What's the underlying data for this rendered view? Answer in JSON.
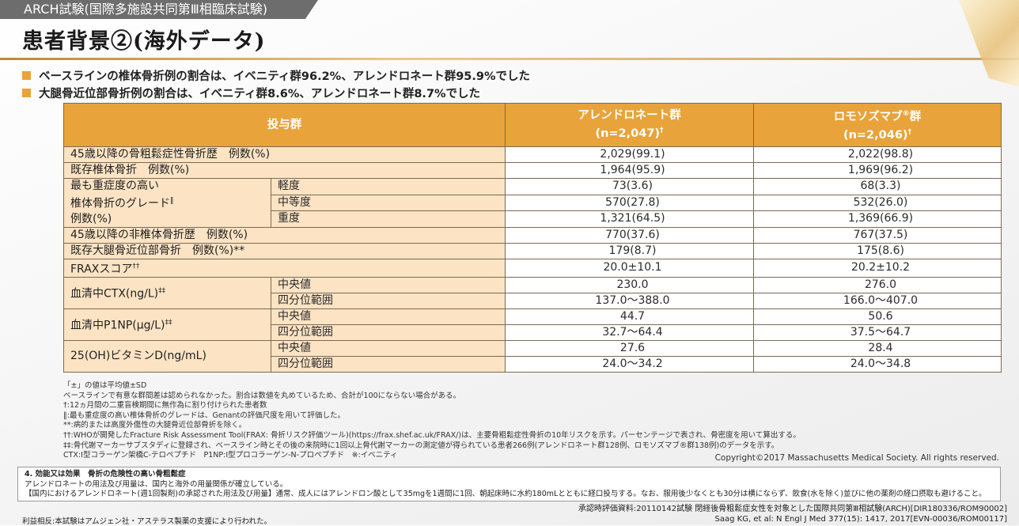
{
  "header": {
    "tab_label": "ARCH試験(国際多施設共同第Ⅲ相臨床試験)",
    "title": "患者背景②(海外データ)"
  },
  "bullets": [
    "ベースラインの椎体骨折例の割合は、イベニティ群96.2%、アレンドロネート群95.9%でした",
    "大腿骨近位部骨折例の割合は、イベニティ群8.6%、アレンドロネート群8.7%でした"
  ],
  "table": {
    "head_group": "投与群",
    "col1_name": "アレンドロネート群",
    "col1_n": "(n=2,047)",
    "col1_mark": "†",
    "col2_name": "ロモソズマブ",
    "col2_reg": "®",
    "col2_suffix": "群",
    "col2_n": "(n=2,046)",
    "col2_mark": "†",
    "rows": {
      "hist45": {
        "label": "45歳以降の骨粗鬆症性骨折歴　例数(%)",
        "c1": "2,029(99.1)",
        "c2": "2,022(98.8)"
      },
      "vert": {
        "label": "既存椎体骨折　例数(%)",
        "c1": "1,964(95.9)",
        "c2": "1,969(96.2)"
      },
      "grade": {
        "label1": "最も重症度の高い",
        "label2": "椎体骨折のグレード",
        "label2_mark": "‖",
        "label3": "例数(%)",
        "mild": {
          "label": "軽度",
          "c1": "73(3.6)",
          "c2": "68(3.3)"
        },
        "moderate": {
          "label": "中等度",
          "c1": "570(27.8)",
          "c2": "532(26.0)"
        },
        "severe": {
          "label": "重度",
          "c1": "1,321(64.5)",
          "c2": "1,369(66.9)"
        }
      },
      "nonvert": {
        "label": "45歳以降の非椎体骨折歴　例数(%)",
        "c1": "770(37.6)",
        "c2": "767(37.5)"
      },
      "hip": {
        "label": "既存大腿骨近位部骨折　例数(%)**",
        "c1": "179(8.7)",
        "c2": "175(8.6)"
      },
      "frax": {
        "label": "FRAXスコア",
        "mark": "††",
        "c1": "20.0±10.1",
        "c2": "20.2±10.2"
      },
      "ctx": {
        "label": "血清中CTX(ng/L)",
        "mark": "‡‡",
        "median_label": "中央値",
        "median_c1": "230.0",
        "median_c2": "276.0",
        "iqr_label": "四分位範囲",
        "iqr_c1": "137.0〜388.0",
        "iqr_c2": "166.0〜407.0"
      },
      "p1np": {
        "label": "血清中P1NP(μg/L)",
        "mark": "‡‡",
        "median_label": "中央値",
        "median_c1": "44.7",
        "median_c2": "50.6",
        "iqr_label": "四分位範囲",
        "iqr_c1": "32.7〜64.4",
        "iqr_c2": "37.5〜64.7"
      },
      "vitd": {
        "label": "25(OH)ビタミンD(ng/mL)",
        "median_label": "中央値",
        "median_c1": "27.6",
        "median_c2": "28.4",
        "iqr_label": "四分位範囲",
        "iqr_c1": "24.0〜34.2",
        "iqr_c2": "24.0〜34.8"
      }
    }
  },
  "footnotes": [
    "「±」の値は平均値±SD",
    "ベースラインで有意な群間差は認められなかった。割合は数値を丸めているため、合計が100にならない場合がある。",
    "†:12ヵ月間の二重盲検期間に無作為に割り付けられた患者数",
    "‖:最も重症度の高い椎体骨折のグレードは、Genantの評価尺度を用いて評価した。",
    "**:病的または高度外傷性の大腿骨近位部骨折を除く。",
    "††:WHOが開発したFracture Risk Assessment Tool(FRAX: 骨折リスク評価ツール)(https://frax.shef.ac.uk/FRAX/)は、主要骨粗鬆症性骨折の10年リスクを示す。パーセンテージで表され、骨密度を用いて算出する。",
    "‡‡:骨代謝マーカーサブスタディに登録され、ベースライン時とその後の来院時に1回以上骨代謝マーカーの測定値が得られている患者266例(アレンドロネート群128例、ロモソズマブ®群138例)のデータを示す。",
    "CTX:I型コラーゲン架橋C-テロペプチド　P1NP:I型プロコラーゲン-N-プロペプチド　※:イベニティ"
  ],
  "copyright": "Copyright©2017 Massachusetts Medical Society. All rights reserved.",
  "notice": {
    "title": "4. 効能又は効果　骨折の危険性の高い骨粗鬆症",
    "line1": "アレンドロネートの用法及び用量は、国内と海外の用量関係が確立している。",
    "line2": "【国内におけるアレンドロネート(週1回製剤)の承認された用法及び用量】通常、成人にはアレンドロン酸として35mgを1週間に1回、朝起床時に水約180mLとともに経口投与する。なお、服用後少なくとも30分は横にならず、飲食(水を除く)並びに他の薬剤の経口摂取も避けること。"
  },
  "refs": {
    "line1": "承認時評価資料:20110142試験 閉経後骨粗鬆症女性を対象とした国際共同第Ⅲ相試験(ARCH)[DIR180336/ROM90002]",
    "line2": "Saag KG, et al: N Engl J Med 377(15): 1417, 2017[EVN-00036/ROM00117]"
  },
  "disclosure": "利益相反:本試験はアムジェン社・アステラス製薬の支援により行われた。"
}
